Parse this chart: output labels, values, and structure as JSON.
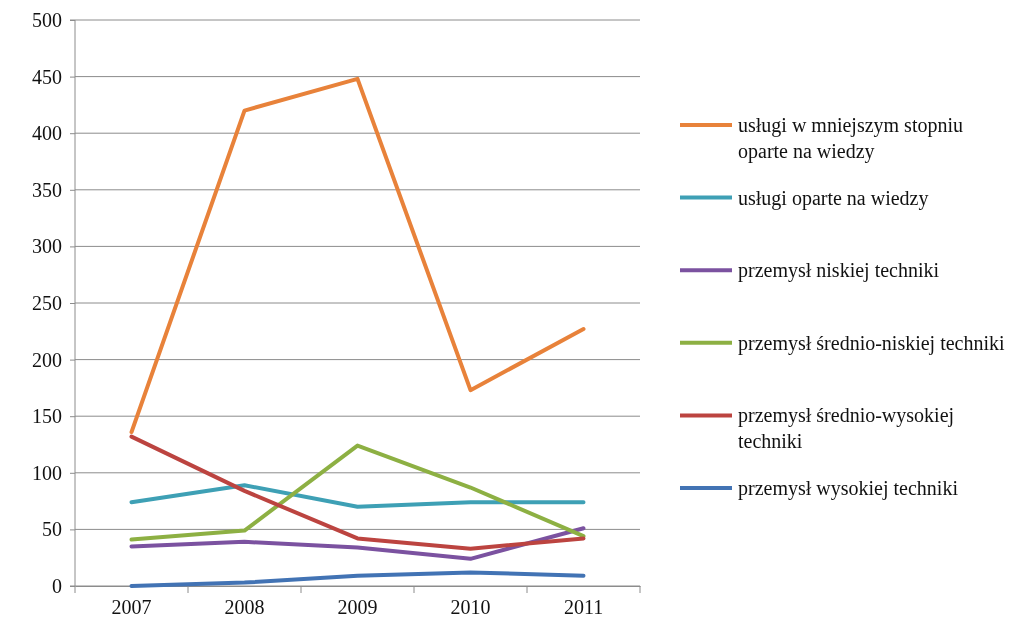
{
  "chart_data": {
    "type": "line",
    "categories": [
      "2007",
      "2008",
      "2009",
      "2010",
      "2011"
    ],
    "series": [
      {
        "name": "usługi w mniejszym stopniu oparte na wiedzy",
        "color": "#e8823a",
        "values": [
          136,
          420,
          448,
          173,
          227
        ]
      },
      {
        "name": "usługi oparte na wiedzy",
        "color": "#3ea0b5",
        "values": [
          74,
          89,
          70,
          74,
          74
        ]
      },
      {
        "name": "przemysł niskiej techniki",
        "color": "#7b52a0",
        "values": [
          35,
          39,
          34,
          24,
          51
        ]
      },
      {
        "name": "przemysł średnio-niskiej techniki",
        "color": "#8db043",
        "values": [
          41,
          49,
          124,
          87,
          44
        ]
      },
      {
        "name": "przemysł średnio-wysokiej techniki",
        "color": "#bc4440",
        "values": [
          132,
          84,
          42,
          33,
          42
        ]
      },
      {
        "name": "przemysł wysokiej techniki",
        "color": "#4273b4",
        "values": [
          0,
          3,
          9,
          12,
          9
        ]
      }
    ],
    "ylim": [
      0,
      500
    ],
    "yticks": [
      0,
      50,
      100,
      150,
      200,
      250,
      300,
      350,
      400,
      450,
      500
    ],
    "grid": "y",
    "legend": "right",
    "marker": "none",
    "line_style": "solid"
  }
}
